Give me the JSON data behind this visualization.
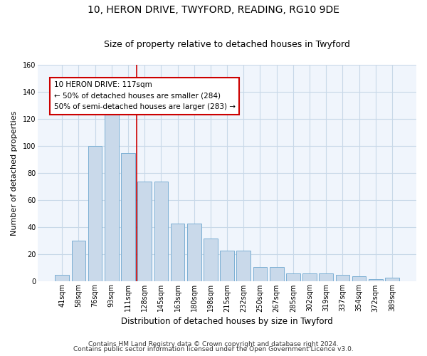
{
  "title1": "10, HERON DRIVE, TWYFORD, READING, RG10 9DE",
  "title2": "Size of property relative to detached houses in Twyford",
  "xlabel": "Distribution of detached houses by size in Twyford",
  "ylabel": "Number of detached properties",
  "categories": [
    "41sqm",
    "58sqm",
    "76sqm",
    "93sqm",
    "111sqm",
    "128sqm",
    "145sqm",
    "163sqm",
    "180sqm",
    "198sqm",
    "215sqm",
    "232sqm",
    "250sqm",
    "267sqm",
    "285sqm",
    "302sqm",
    "319sqm",
    "337sqm",
    "354sqm",
    "372sqm",
    "389sqm"
  ],
  "bar_values": [
    5,
    30,
    100,
    126,
    95,
    74,
    74,
    43,
    43,
    32,
    23,
    23,
    11,
    11,
    6,
    6,
    6,
    5,
    4,
    2,
    3
  ],
  "bar_color": "#c9d9ea",
  "bar_edge_color": "#7bafd4",
  "vline_x": 4.5,
  "vline_color": "#cc0000",
  "annotation_box_text": "10 HERON DRIVE: 117sqm\n← 50% of detached houses are smaller (284)\n50% of semi-detached houses are larger (283) →",
  "ylim": [
    0,
    160
  ],
  "yticks": [
    0,
    20,
    40,
    60,
    80,
    100,
    120,
    140,
    160
  ],
  "footer1": "Contains HM Land Registry data © Crown copyright and database right 2024.",
  "footer2": "Contains public sector information licensed under the Open Government Licence v3.0.",
  "background_color": "#f0f5fc",
  "grid_color": "#c8d8e8",
  "title1_fontsize": 10,
  "title2_fontsize": 9,
  "xlabel_fontsize": 8.5,
  "ylabel_fontsize": 8,
  "tick_fontsize": 7,
  "annotation_fontsize": 7.5,
  "footer_fontsize": 6.5
}
